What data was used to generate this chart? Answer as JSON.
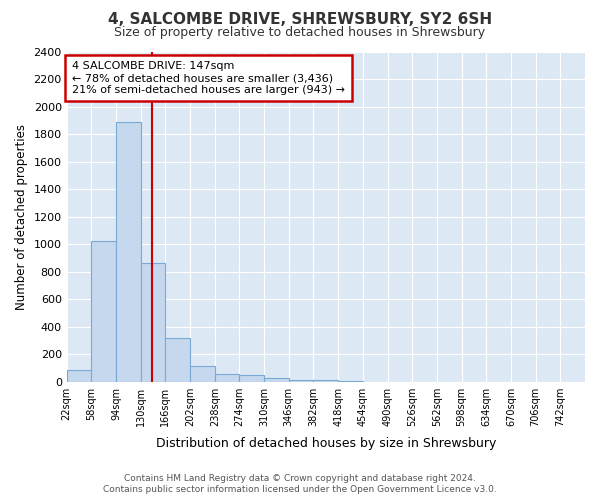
{
  "title": "4, SALCOMBE DRIVE, SHREWSBURY, SY2 6SH",
  "subtitle": "Size of property relative to detached houses in Shrewsbury",
  "xlabel": "Distribution of detached houses by size in Shrewsbury",
  "ylabel": "Number of detached properties",
  "footer_line1": "Contains HM Land Registry data © Crown copyright and database right 2024.",
  "footer_line2": "Contains public sector information licensed under the Open Government Licence v3.0.",
  "bin_left_edges": [
    22,
    58,
    94,
    130,
    166,
    202,
    238,
    274,
    310,
    346,
    382,
    418,
    454,
    490,
    526,
    562,
    598,
    634,
    670,
    706
  ],
  "bin_width": 36,
  "bar_heights": [
    88,
    1025,
    1890,
    860,
    320,
    115,
    55,
    45,
    30,
    15,
    15,
    5,
    0,
    0,
    0,
    0,
    0,
    0,
    0,
    0
  ],
  "bar_color": "#c5d8ee",
  "bar_edge_color": "#7aaad4",
  "vline_x": 147,
  "vline_color": "#cc0000",
  "annotation_line1": "4 SALCOMBE DRIVE: 147sqm",
  "annotation_line2": "← 78% of detached houses are smaller (3,436)",
  "annotation_line3": "21% of semi-detached houses are larger (943) →",
  "annotation_box_color": "#cc0000",
  "ylim": [
    0,
    2400
  ],
  "yticks": [
    0,
    200,
    400,
    600,
    800,
    1000,
    1200,
    1400,
    1600,
    1800,
    2000,
    2200,
    2400
  ],
  "xtick_values": [
    22,
    58,
    94,
    130,
    166,
    202,
    238,
    274,
    310,
    346,
    382,
    418,
    454,
    490,
    526,
    562,
    598,
    634,
    670,
    706,
    742
  ],
  "grid_color": "#ffffff",
  "plot_bg_color": "#dde8f5",
  "fig_bg_color": "#ffffff",
  "figsize": [
    6.0,
    5.0
  ],
  "dpi": 100
}
